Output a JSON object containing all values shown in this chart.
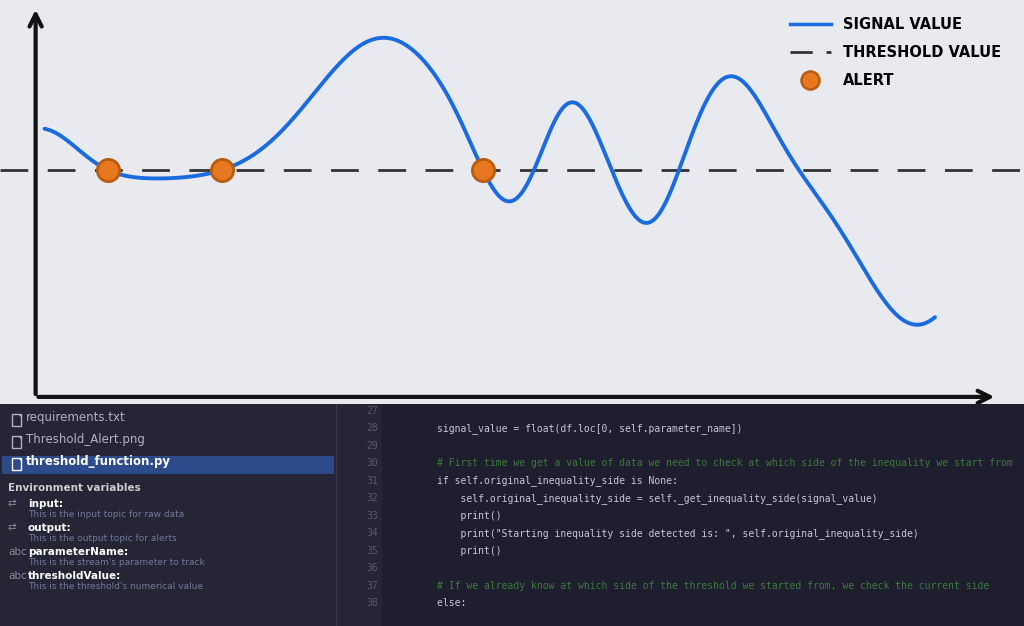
{
  "top_bg_color": "#e8eaf0",
  "bottom_bg_color": "#1e1e2e",
  "sidebar_bg": "#252535",
  "selected_file_bg": "#2d4a8a",
  "code_bg": "#1e1e2e",
  "signal_color": "#1a6be0",
  "threshold_color": "#333333",
  "alert_fill": "#e87820",
  "alert_edge": "#b85c10",
  "signal_lw": 2.8,
  "threshold_lw": 2.0,
  "alert_ms": 16,
  "legend_signal": "SIGNAL VALUE",
  "legend_threshold": "THRESHOLD VALUE",
  "legend_alert": "ALERT",
  "code_lines": [
    [
      "27",
      ""
    ],
    [
      "28",
      "        signal_value = float(df.loc[0, self.parameter_name])"
    ],
    [
      "29",
      ""
    ],
    [
      "30",
      "        # First time we get a value of data we need to check at which side of the inequality we start from"
    ],
    [
      "31",
      "        if self.original_inequality_side is None:"
    ],
    [
      "32",
      "            self.original_inequality_side = self._get_inequality_side(signal_value)"
    ],
    [
      "33",
      "            print()"
    ],
    [
      "34",
      "            print(\"Starting inequality side detected is: \", self.original_inequality_side)"
    ],
    [
      "35",
      "            print()"
    ],
    [
      "36",
      ""
    ],
    [
      "37",
      "        # If we already know at which side of the threshold we started from, we check the current side"
    ],
    [
      "38",
      "        else:"
    ]
  ]
}
